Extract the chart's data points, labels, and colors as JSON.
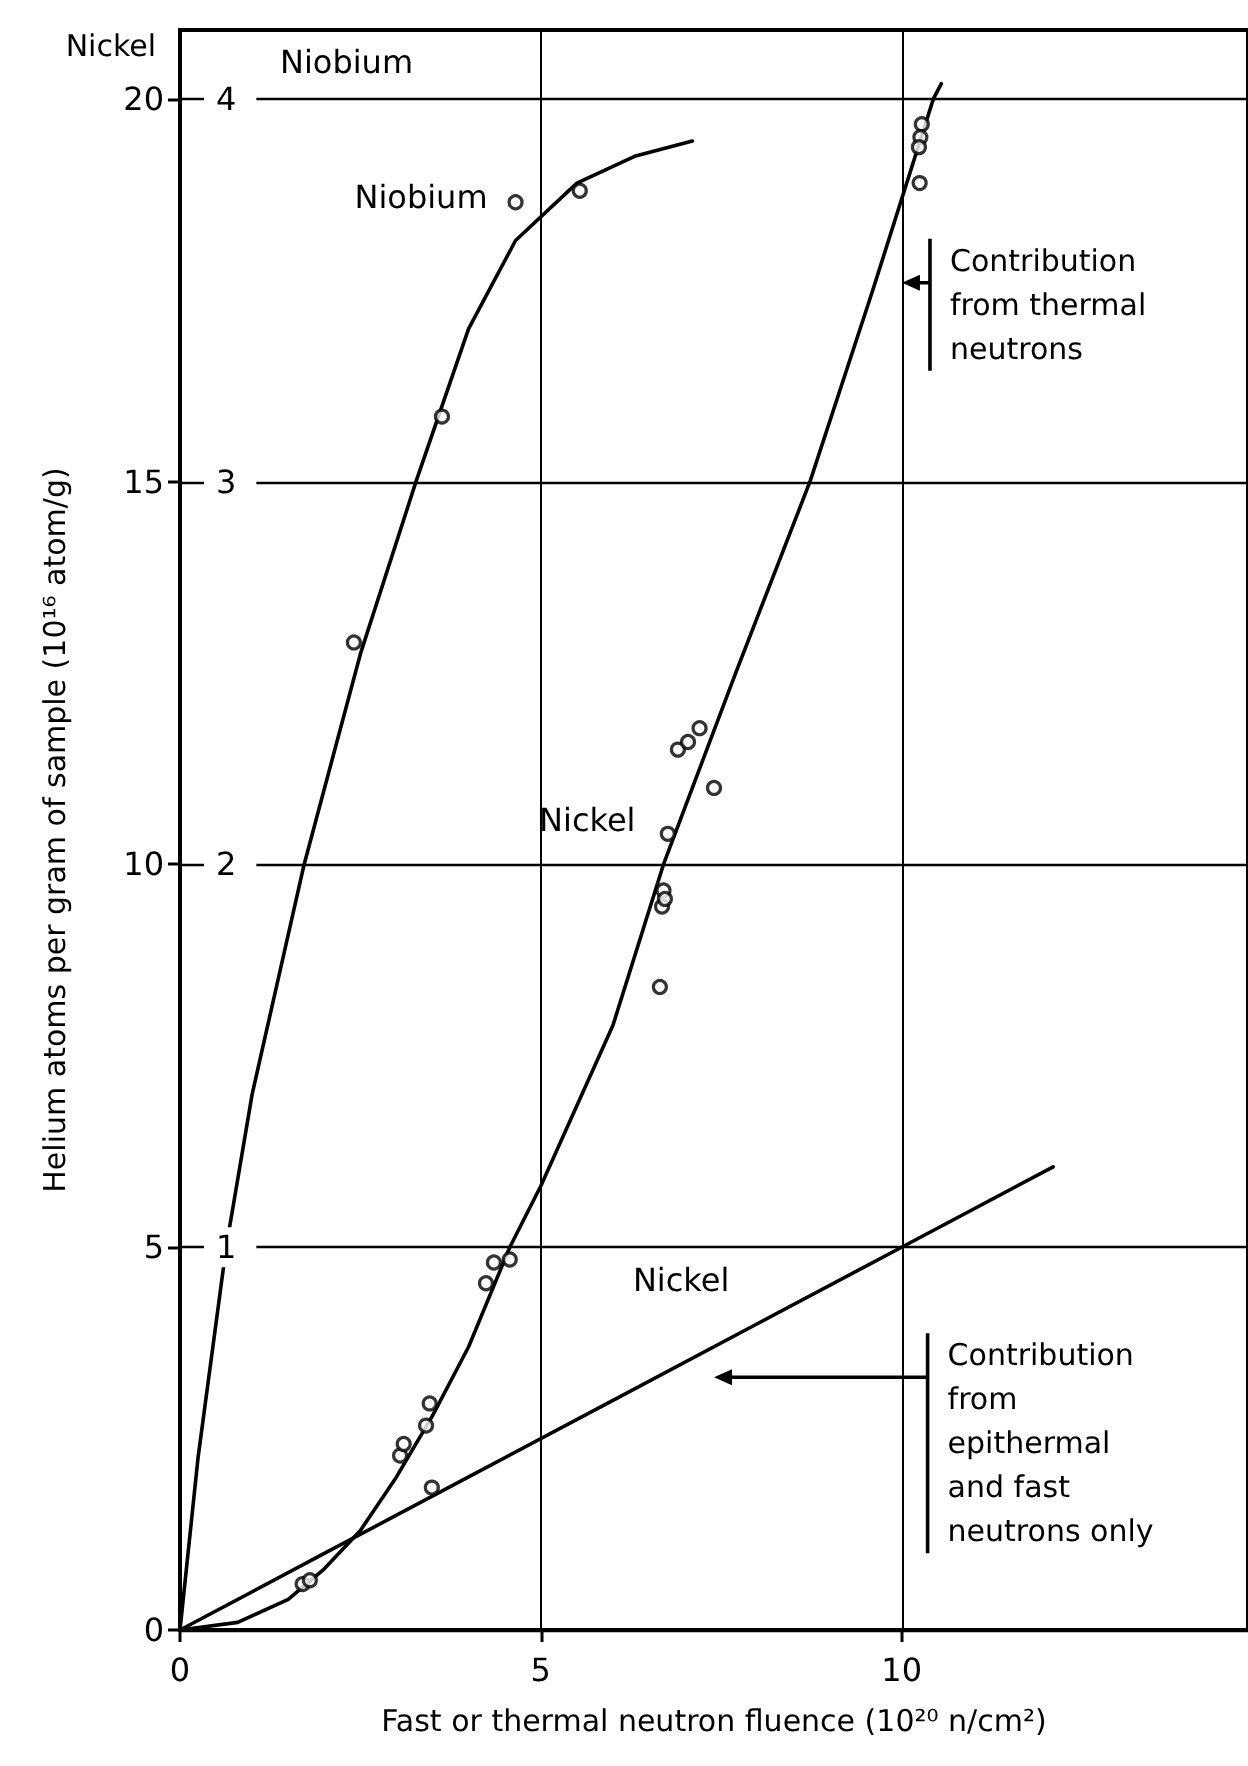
{
  "chart_data": {
    "type": "line",
    "xlabel": "Fast or thermal neutron fluence (10²⁰ n/cm²)",
    "ylabel": "Helium atoms per gram of sample (10¹⁶ atom/g)",
    "xlim": [
      0,
      14.8
    ],
    "xticks": [
      0,
      5,
      10
    ],
    "ylim": [
      0,
      20.9
    ],
    "yticks": [
      0,
      5,
      10,
      15,
      20
    ],
    "y2lim": [
      0,
      4.18
    ],
    "y2ticks": [
      1,
      2,
      3,
      4
    ],
    "grid": true,
    "line_style": "solid",
    "series": [
      {
        "name": "Niobium",
        "axis": "y2",
        "color": "#000000",
        "x": [
          0,
          0.25,
          0.64,
          1.0,
          1.72,
          2.5,
          3.27,
          4.0,
          4.65,
          5.5,
          6.3,
          7.1
        ],
        "values": [
          0,
          0.45,
          1,
          1.4,
          2,
          2.55,
          3,
          3.4,
          3.63,
          3.78,
          3.85,
          3.89
        ]
      },
      {
        "type": "scatter",
        "marker": "circle",
        "axis": "y2",
        "color": "#000000",
        "x": [
          2.41,
          3.63,
          4.65,
          5.54
        ],
        "values": [
          2.58,
          3.17,
          3.73,
          3.76
        ]
      },
      {
        "name": "Nickel",
        "color": "#000000",
        "x": [
          0,
          0.8,
          1.5,
          2,
          2.5,
          3,
          3.5,
          4,
          4.57,
          5,
          6,
          6.7,
          7.7,
          8.73,
          9.6,
          10.44,
          10.55
        ],
        "values": [
          0,
          0.1,
          0.4,
          0.8,
          1.3,
          2.0,
          2.8,
          3.7,
          5,
          5.8,
          7.9,
          10,
          12.5,
          15,
          17.5,
          20,
          20.2
        ]
      },
      {
        "name": "Nickel",
        "color": "#000000",
        "x": [
          0,
          2,
          4,
          6,
          8,
          10,
          12.1
        ],
        "values": [
          0,
          1,
          2,
          3,
          4,
          5,
          6.05
        ]
      },
      {
        "type": "scatter",
        "marker": "circle",
        "color": "#000000",
        "x": [
          1.7,
          1.8,
          3.05,
          3.1,
          3.46,
          4.24,
          4.35,
          4.57,
          6.7,
          6.68,
          6.72,
          6.76,
          6.9,
          7.04,
          7.2,
          10.28,
          10.26,
          10.24,
          3.41,
          3.49,
          6.65,
          7.4,
          10.25
        ],
        "values": [
          0.6,
          0.65,
          2.28,
          2.43,
          2.96,
          4.53,
          4.8,
          4.84,
          9.66,
          9.45,
          9.55,
          10.4,
          11.5,
          11.6,
          11.78,
          19.67,
          19.5,
          19.37,
          2.67,
          1.86,
          8.4,
          11.0,
          18.9
        ]
      }
    ],
    "annotations": [
      "Nickel",
      "Niobium",
      "Contribution from thermal neutrons",
      "Contribution from epithermal and fast neutrons only"
    ]
  }
}
